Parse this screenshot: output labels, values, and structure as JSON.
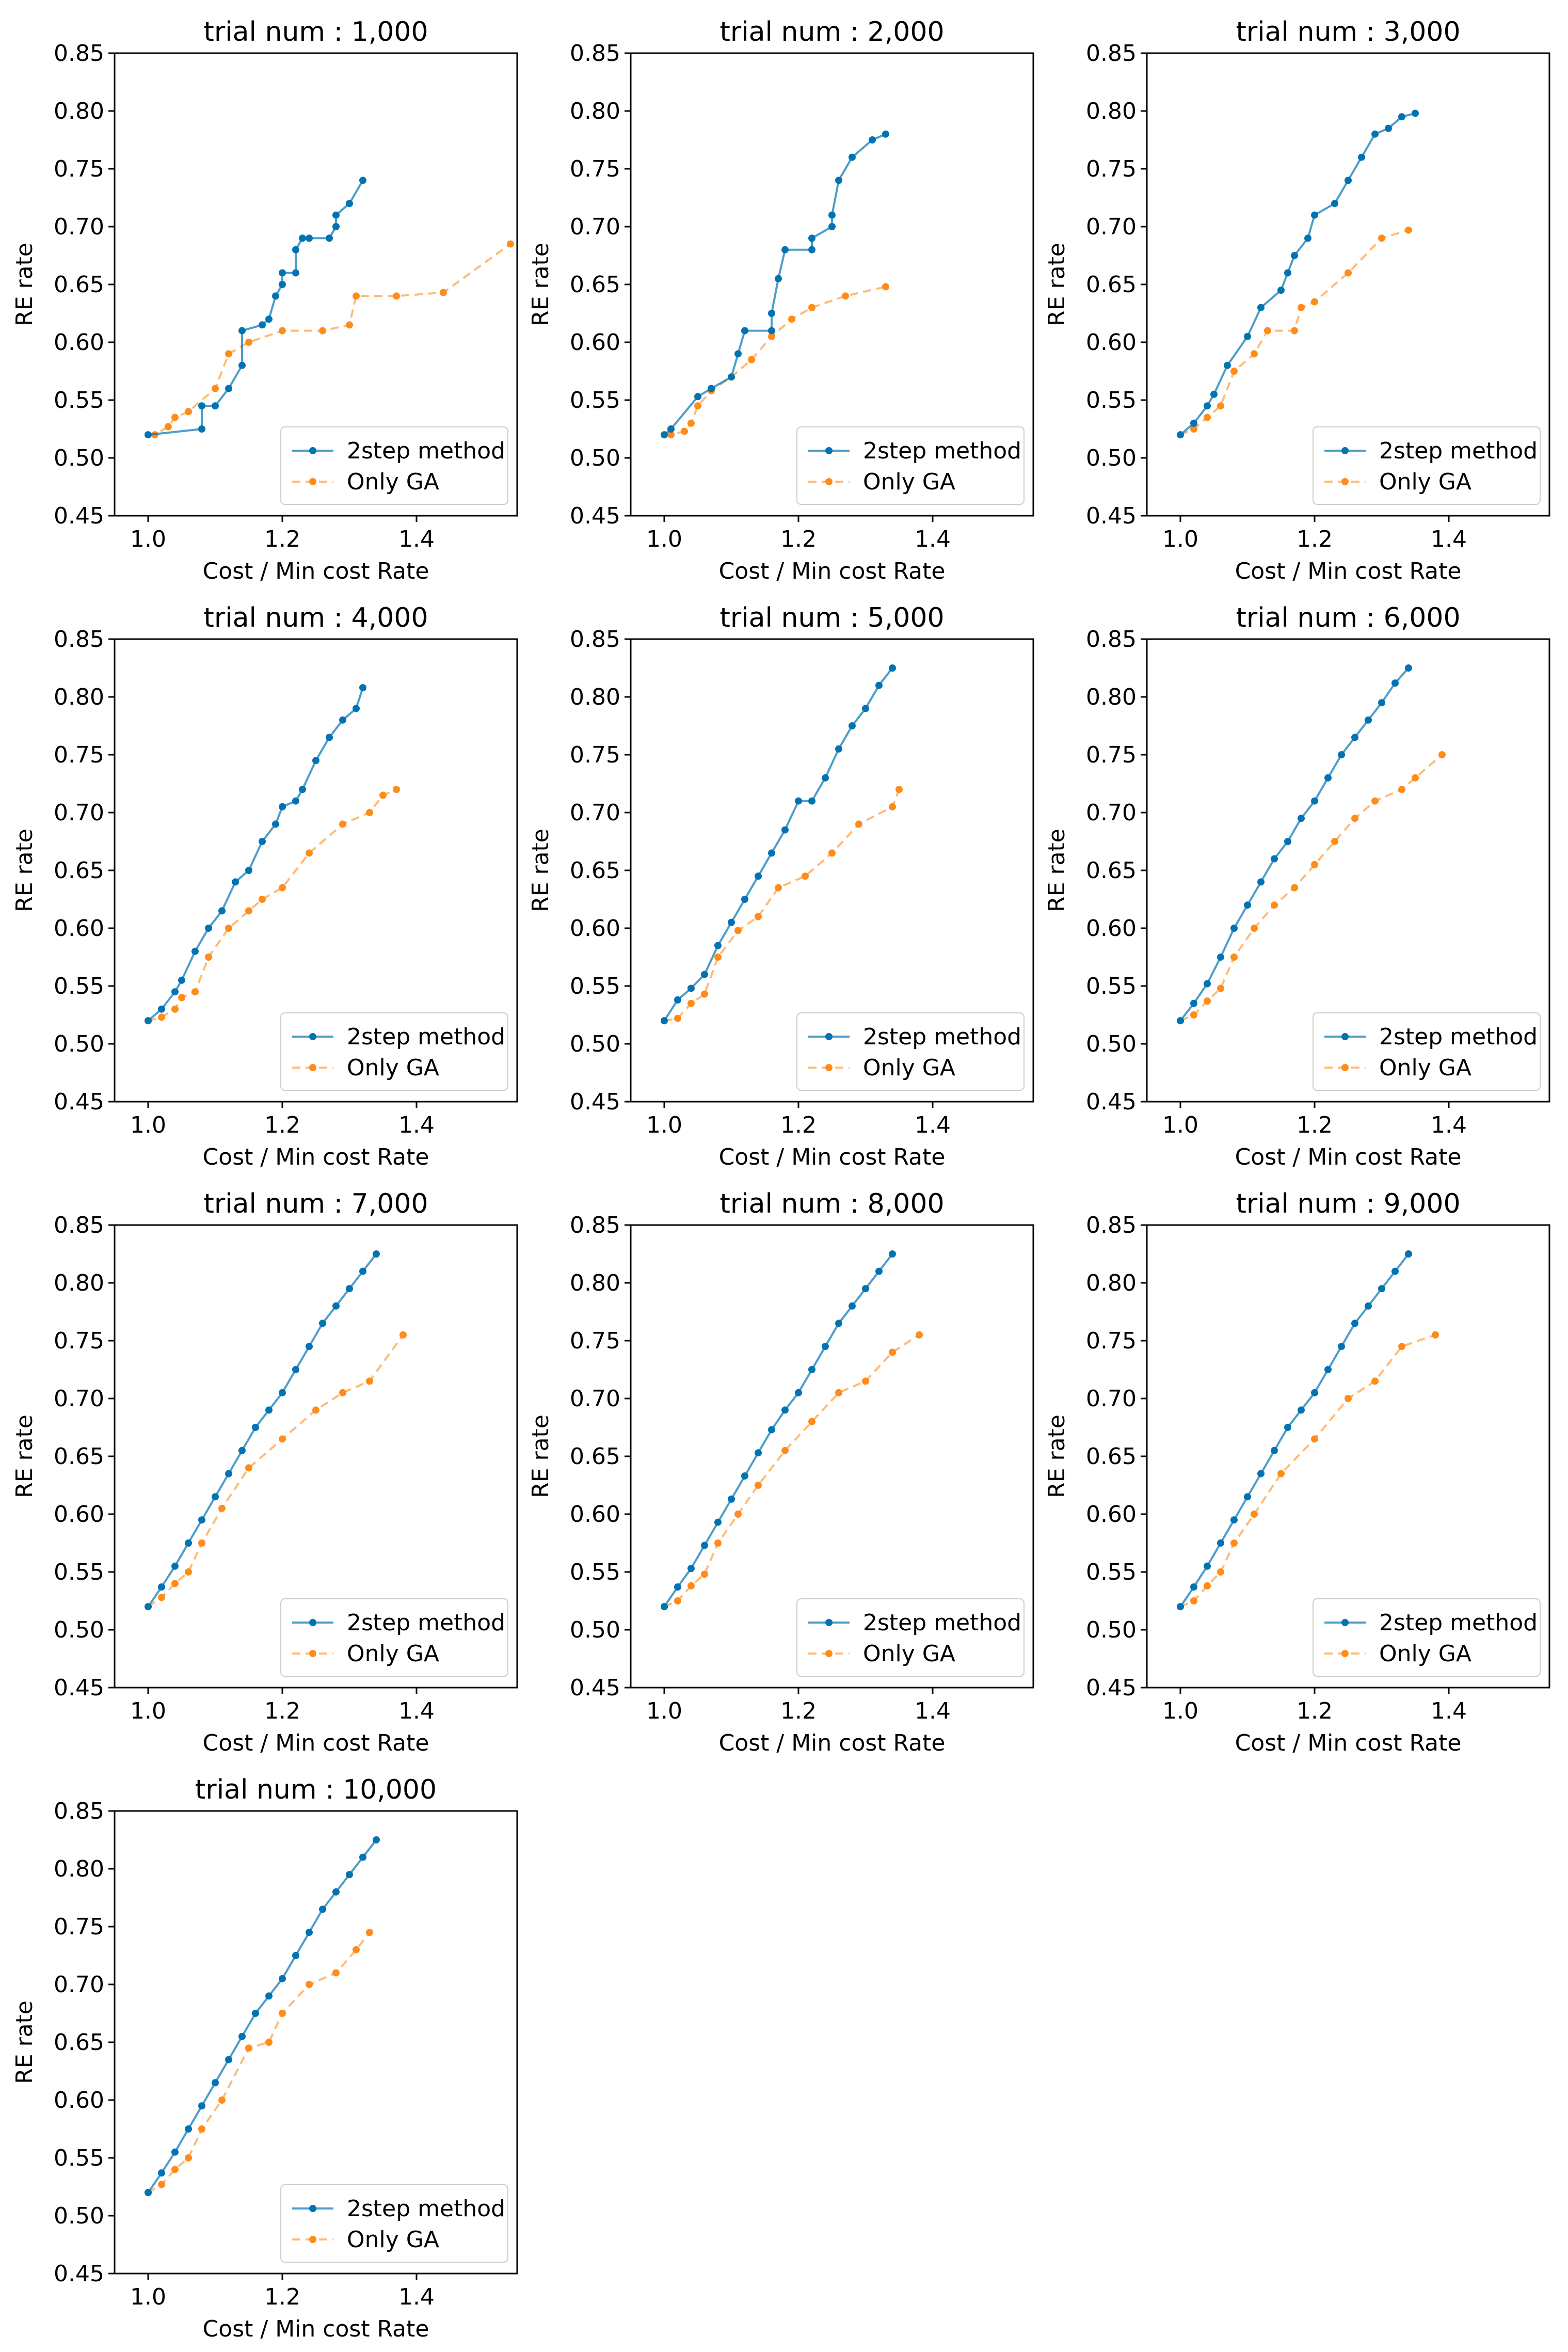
{
  "figure": {
    "description_type": "grid of Pareto front comparisons",
    "series_names": [
      "2step method",
      "Only GA"
    ],
    "colors": {
      "two_step": "#0173b2",
      "only_ga": "#ff8c1a",
      "axis": "#000000"
    }
  },
  "chart_data": [
    {
      "type": "line",
      "title": "trial num : 1,000",
      "xlabel": "Cost / Min cost Rate",
      "ylabel": "RE rate",
      "xlim": [
        0.95,
        1.55
      ],
      "ylim": [
        0.45,
        0.85
      ],
      "xticks": [
        "1.0",
        "1.2",
        "1.4"
      ],
      "yticks": [
        "0.45",
        "0.50",
        "0.55",
        "0.60",
        "0.65",
        "0.70",
        "0.75",
        "0.80",
        "0.85"
      ],
      "legend": [
        "2step method",
        "Only GA"
      ],
      "series": [
        {
          "name": "2step method",
          "x": [
            1.0,
            1.08,
            1.08,
            1.1,
            1.12,
            1.14,
            1.14,
            1.17,
            1.18,
            1.19,
            1.2,
            1.2,
            1.22,
            1.22,
            1.23,
            1.24,
            1.27,
            1.28,
            1.28,
            1.3,
            1.32
          ],
          "y": [
            0.52,
            0.525,
            0.545,
            0.545,
            0.56,
            0.58,
            0.61,
            0.615,
            0.62,
            0.64,
            0.65,
            0.66,
            0.66,
            0.68,
            0.69,
            0.69,
            0.69,
            0.7,
            0.71,
            0.72,
            0.74
          ]
        },
        {
          "name": "Only GA",
          "x": [
            1.0,
            1.01,
            1.03,
            1.04,
            1.06,
            1.1,
            1.12,
            1.15,
            1.2,
            1.26,
            1.3,
            1.31,
            1.37,
            1.44,
            1.54
          ],
          "y": [
            0.52,
            0.52,
            0.527,
            0.535,
            0.54,
            0.56,
            0.59,
            0.6,
            0.61,
            0.61,
            0.615,
            0.64,
            0.64,
            0.643,
            0.685
          ]
        }
      ]
    },
    {
      "type": "line",
      "title": "trial num : 2,000",
      "xlabel": "Cost / Min cost Rate",
      "ylabel": "RE rate",
      "xlim": [
        0.95,
        1.55
      ],
      "ylim": [
        0.45,
        0.85
      ],
      "xticks": [
        "1.0",
        "1.2",
        "1.4"
      ],
      "yticks": [
        "0.45",
        "0.50",
        "0.55",
        "0.60",
        "0.65",
        "0.70",
        "0.75",
        "0.80",
        "0.85"
      ],
      "legend": [
        "2step method",
        "Only GA"
      ],
      "series": [
        {
          "name": "2step method",
          "x": [
            1.0,
            1.01,
            1.05,
            1.07,
            1.1,
            1.11,
            1.12,
            1.16,
            1.16,
            1.17,
            1.18,
            1.22,
            1.22,
            1.25,
            1.25,
            1.26,
            1.28,
            1.31,
            1.33
          ],
          "y": [
            0.52,
            0.525,
            0.553,
            0.56,
            0.57,
            0.59,
            0.61,
            0.61,
            0.625,
            0.655,
            0.68,
            0.68,
            0.69,
            0.7,
            0.71,
            0.74,
            0.76,
            0.775,
            0.78
          ]
        },
        {
          "name": "Only GA",
          "x": [
            1.0,
            1.01,
            1.03,
            1.04,
            1.05,
            1.07,
            1.1,
            1.13,
            1.16,
            1.19,
            1.22,
            1.27,
            1.33
          ],
          "y": [
            0.52,
            0.52,
            0.523,
            0.53,
            0.545,
            0.558,
            0.57,
            0.585,
            0.605,
            0.62,
            0.63,
            0.64,
            0.648
          ]
        }
      ]
    },
    {
      "type": "line",
      "title": "trial num : 3,000",
      "xlabel": "Cost / Min cost Rate",
      "ylabel": "RE rate",
      "xlim": [
        0.95,
        1.55
      ],
      "ylim": [
        0.45,
        0.85
      ],
      "xticks": [
        "1.0",
        "1.2",
        "1.4"
      ],
      "yticks": [
        "0.45",
        "0.50",
        "0.55",
        "0.60",
        "0.65",
        "0.70",
        "0.75",
        "0.80",
        "0.85"
      ],
      "legend": [
        "2step method",
        "Only GA"
      ],
      "series": [
        {
          "name": "2step method",
          "x": [
            1.0,
            1.02,
            1.04,
            1.05,
            1.07,
            1.1,
            1.12,
            1.15,
            1.16,
            1.17,
            1.19,
            1.2,
            1.23,
            1.25,
            1.27,
            1.29,
            1.31,
            1.33,
            1.35
          ],
          "y": [
            0.52,
            0.53,
            0.545,
            0.555,
            0.58,
            0.605,
            0.63,
            0.645,
            0.66,
            0.675,
            0.69,
            0.71,
            0.72,
            0.74,
            0.76,
            0.78,
            0.785,
            0.795,
            0.798
          ]
        },
        {
          "name": "Only GA",
          "x": [
            1.0,
            1.02,
            1.04,
            1.06,
            1.08,
            1.11,
            1.13,
            1.17,
            1.18,
            1.2,
            1.25,
            1.3,
            1.34
          ],
          "y": [
            0.52,
            0.525,
            0.535,
            0.545,
            0.575,
            0.59,
            0.61,
            0.61,
            0.63,
            0.635,
            0.66,
            0.69,
            0.697
          ]
        }
      ]
    },
    {
      "type": "line",
      "title": "trial num : 4,000",
      "xlabel": "Cost / Min cost Rate",
      "ylabel": "RE rate",
      "xlim": [
        0.95,
        1.55
      ],
      "ylim": [
        0.45,
        0.85
      ],
      "xticks": [
        "1.0",
        "1.2",
        "1.4"
      ],
      "yticks": [
        "0.45",
        "0.50",
        "0.55",
        "0.60",
        "0.65",
        "0.70",
        "0.75",
        "0.80",
        "0.85"
      ],
      "legend": [
        "2step method",
        "Only GA"
      ],
      "series": [
        {
          "name": "2step method",
          "x": [
            1.0,
            1.02,
            1.04,
            1.05,
            1.07,
            1.09,
            1.11,
            1.13,
            1.15,
            1.17,
            1.19,
            1.2,
            1.22,
            1.23,
            1.25,
            1.27,
            1.29,
            1.31,
            1.32
          ],
          "y": [
            0.52,
            0.53,
            0.545,
            0.555,
            0.58,
            0.6,
            0.615,
            0.64,
            0.65,
            0.675,
            0.69,
            0.705,
            0.71,
            0.72,
            0.745,
            0.765,
            0.78,
            0.79,
            0.808
          ]
        },
        {
          "name": "Only GA",
          "x": [
            1.0,
            1.02,
            1.04,
            1.05,
            1.07,
            1.09,
            1.12,
            1.15,
            1.17,
            1.2,
            1.24,
            1.29,
            1.33,
            1.35,
            1.37
          ],
          "y": [
            0.52,
            0.523,
            0.53,
            0.54,
            0.545,
            0.575,
            0.6,
            0.615,
            0.625,
            0.635,
            0.665,
            0.69,
            0.7,
            0.715,
            0.72
          ]
        }
      ]
    },
    {
      "type": "line",
      "title": "trial num : 5,000",
      "xlabel": "Cost / Min cost Rate",
      "ylabel": "RE rate",
      "xlim": [
        0.95,
        1.55
      ],
      "ylim": [
        0.45,
        0.85
      ],
      "xticks": [
        "1.0",
        "1.2",
        "1.4"
      ],
      "yticks": [
        "0.45",
        "0.50",
        "0.55",
        "0.60",
        "0.65",
        "0.70",
        "0.75",
        "0.80",
        "0.85"
      ],
      "legend": [
        "2step method",
        "Only GA"
      ],
      "series": [
        {
          "name": "2step method",
          "x": [
            1.0,
            1.02,
            1.04,
            1.06,
            1.08,
            1.1,
            1.12,
            1.14,
            1.16,
            1.18,
            1.2,
            1.22,
            1.24,
            1.26,
            1.28,
            1.3,
            1.32,
            1.34
          ],
          "y": [
            0.52,
            0.538,
            0.548,
            0.56,
            0.585,
            0.605,
            0.625,
            0.645,
            0.665,
            0.685,
            0.71,
            0.71,
            0.73,
            0.755,
            0.775,
            0.79,
            0.81,
            0.825
          ]
        },
        {
          "name": "Only GA",
          "x": [
            1.0,
            1.02,
            1.04,
            1.06,
            1.08,
            1.11,
            1.14,
            1.17,
            1.21,
            1.25,
            1.29,
            1.34,
            1.35
          ],
          "y": [
            0.52,
            0.522,
            0.535,
            0.543,
            0.575,
            0.598,
            0.61,
            0.635,
            0.645,
            0.665,
            0.69,
            0.705,
            0.72
          ]
        }
      ]
    },
    {
      "type": "line",
      "title": "trial num : 6,000",
      "xlabel": "Cost / Min cost Rate",
      "ylabel": "RE rate",
      "xlim": [
        0.95,
        1.55
      ],
      "ylim": [
        0.45,
        0.85
      ],
      "xticks": [
        "1.0",
        "1.2",
        "1.4"
      ],
      "yticks": [
        "0.45",
        "0.50",
        "0.55",
        "0.60",
        "0.65",
        "0.70",
        "0.75",
        "0.80",
        "0.85"
      ],
      "legend": [
        "2step method",
        "Only GA"
      ],
      "series": [
        {
          "name": "2step method",
          "x": [
            1.0,
            1.02,
            1.04,
            1.06,
            1.08,
            1.1,
            1.12,
            1.14,
            1.16,
            1.18,
            1.2,
            1.22,
            1.24,
            1.26,
            1.28,
            1.3,
            1.32,
            1.34
          ],
          "y": [
            0.52,
            0.535,
            0.552,
            0.575,
            0.6,
            0.62,
            0.64,
            0.66,
            0.675,
            0.695,
            0.71,
            0.73,
            0.75,
            0.765,
            0.78,
            0.795,
            0.812,
            0.825
          ]
        },
        {
          "name": "Only GA",
          "x": [
            1.0,
            1.02,
            1.04,
            1.06,
            1.08,
            1.11,
            1.14,
            1.17,
            1.2,
            1.23,
            1.26,
            1.29,
            1.33,
            1.35,
            1.39
          ],
          "y": [
            0.52,
            0.525,
            0.537,
            0.548,
            0.575,
            0.6,
            0.62,
            0.635,
            0.655,
            0.675,
            0.695,
            0.71,
            0.72,
            0.73,
            0.75
          ]
        }
      ]
    },
    {
      "type": "line",
      "title": "trial num : 7,000",
      "xlabel": "Cost / Min cost Rate",
      "ylabel": "RE rate",
      "xlim": [
        0.95,
        1.55
      ],
      "ylim": [
        0.45,
        0.85
      ],
      "xticks": [
        "1.0",
        "1.2",
        "1.4"
      ],
      "yticks": [
        "0.45",
        "0.50",
        "0.55",
        "0.60",
        "0.65",
        "0.70",
        "0.75",
        "0.80",
        "0.85"
      ],
      "legend": [
        "2step method",
        "Only GA"
      ],
      "series": [
        {
          "name": "2step method",
          "x": [
            1.0,
            1.02,
            1.04,
            1.06,
            1.08,
            1.1,
            1.12,
            1.14,
            1.16,
            1.18,
            1.2,
            1.22,
            1.24,
            1.26,
            1.28,
            1.3,
            1.32,
            1.34
          ],
          "y": [
            0.52,
            0.537,
            0.555,
            0.575,
            0.595,
            0.615,
            0.635,
            0.655,
            0.675,
            0.69,
            0.705,
            0.725,
            0.745,
            0.765,
            0.78,
            0.795,
            0.81,
            0.825
          ]
        },
        {
          "name": "Only GA",
          "x": [
            1.0,
            1.02,
            1.04,
            1.06,
            1.08,
            1.11,
            1.15,
            1.2,
            1.25,
            1.29,
            1.33,
            1.38
          ],
          "y": [
            0.52,
            0.528,
            0.54,
            0.55,
            0.575,
            0.605,
            0.64,
            0.665,
            0.69,
            0.705,
            0.715,
            0.755
          ]
        }
      ]
    },
    {
      "type": "line",
      "title": "trial num : 8,000",
      "xlabel": "Cost / Min cost Rate",
      "ylabel": "RE rate",
      "xlim": [
        0.95,
        1.55
      ],
      "ylim": [
        0.45,
        0.85
      ],
      "xticks": [
        "1.0",
        "1.2",
        "1.4"
      ],
      "yticks": [
        "0.45",
        "0.50",
        "0.55",
        "0.60",
        "0.65",
        "0.70",
        "0.75",
        "0.80",
        "0.85"
      ],
      "legend": [
        "2step method",
        "Only GA"
      ],
      "series": [
        {
          "name": "2step method",
          "x": [
            1.0,
            1.02,
            1.04,
            1.06,
            1.08,
            1.1,
            1.12,
            1.14,
            1.16,
            1.18,
            1.2,
            1.22,
            1.24,
            1.26,
            1.28,
            1.3,
            1.32,
            1.34
          ],
          "y": [
            0.52,
            0.537,
            0.553,
            0.573,
            0.593,
            0.613,
            0.633,
            0.653,
            0.673,
            0.69,
            0.705,
            0.725,
            0.745,
            0.765,
            0.78,
            0.795,
            0.81,
            0.825
          ]
        },
        {
          "name": "Only GA",
          "x": [
            1.0,
            1.02,
            1.04,
            1.06,
            1.08,
            1.11,
            1.14,
            1.18,
            1.22,
            1.26,
            1.3,
            1.34,
            1.38
          ],
          "y": [
            0.52,
            0.525,
            0.538,
            0.548,
            0.575,
            0.6,
            0.625,
            0.655,
            0.68,
            0.705,
            0.715,
            0.74,
            0.755
          ]
        }
      ]
    },
    {
      "type": "line",
      "title": "trial num : 9,000",
      "xlabel": "Cost / Min cost Rate",
      "ylabel": "RE rate",
      "xlim": [
        0.95,
        1.55
      ],
      "ylim": [
        0.45,
        0.85
      ],
      "xticks": [
        "1.0",
        "1.2",
        "1.4"
      ],
      "yticks": [
        "0.45",
        "0.50",
        "0.55",
        "0.60",
        "0.65",
        "0.70",
        "0.75",
        "0.80",
        "0.85"
      ],
      "legend": [
        "2step method",
        "Only GA"
      ],
      "series": [
        {
          "name": "2step method",
          "x": [
            1.0,
            1.02,
            1.04,
            1.06,
            1.08,
            1.1,
            1.12,
            1.14,
            1.16,
            1.18,
            1.2,
            1.22,
            1.24,
            1.26,
            1.28,
            1.3,
            1.32,
            1.34
          ],
          "y": [
            0.52,
            0.537,
            0.555,
            0.575,
            0.595,
            0.615,
            0.635,
            0.655,
            0.675,
            0.69,
            0.705,
            0.725,
            0.745,
            0.765,
            0.78,
            0.795,
            0.81,
            0.825
          ]
        },
        {
          "name": "Only GA",
          "x": [
            1.0,
            1.02,
            1.04,
            1.06,
            1.08,
            1.11,
            1.15,
            1.2,
            1.25,
            1.29,
            1.33,
            1.38
          ],
          "y": [
            0.52,
            0.525,
            0.538,
            0.55,
            0.575,
            0.6,
            0.635,
            0.665,
            0.7,
            0.715,
            0.745,
            0.755
          ]
        }
      ]
    },
    {
      "type": "line",
      "title": "trial num : 10,000",
      "xlabel": "Cost / Min cost Rate",
      "ylabel": "RE rate",
      "xlim": [
        0.95,
        1.55
      ],
      "ylim": [
        0.45,
        0.85
      ],
      "xticks": [
        "1.0",
        "1.2",
        "1.4"
      ],
      "yticks": [
        "0.45",
        "0.50",
        "0.55",
        "0.60",
        "0.65",
        "0.70",
        "0.75",
        "0.80",
        "0.85"
      ],
      "legend": [
        "2step method",
        "Only GA"
      ],
      "series": [
        {
          "name": "2step method",
          "x": [
            1.0,
            1.02,
            1.04,
            1.06,
            1.08,
            1.1,
            1.12,
            1.14,
            1.16,
            1.18,
            1.2,
            1.22,
            1.24,
            1.26,
            1.28,
            1.3,
            1.32,
            1.34
          ],
          "y": [
            0.52,
            0.537,
            0.555,
            0.575,
            0.595,
            0.615,
            0.635,
            0.655,
            0.675,
            0.69,
            0.705,
            0.725,
            0.745,
            0.765,
            0.78,
            0.795,
            0.81,
            0.825
          ]
        },
        {
          "name": "Only GA",
          "x": [
            1.0,
            1.02,
            1.04,
            1.06,
            1.08,
            1.11,
            1.15,
            1.18,
            1.2,
            1.24,
            1.28,
            1.31,
            1.33
          ],
          "y": [
            0.52,
            0.527,
            0.54,
            0.55,
            0.575,
            0.6,
            0.645,
            0.65,
            0.675,
            0.7,
            0.71,
            0.73,
            0.745
          ]
        }
      ]
    }
  ]
}
